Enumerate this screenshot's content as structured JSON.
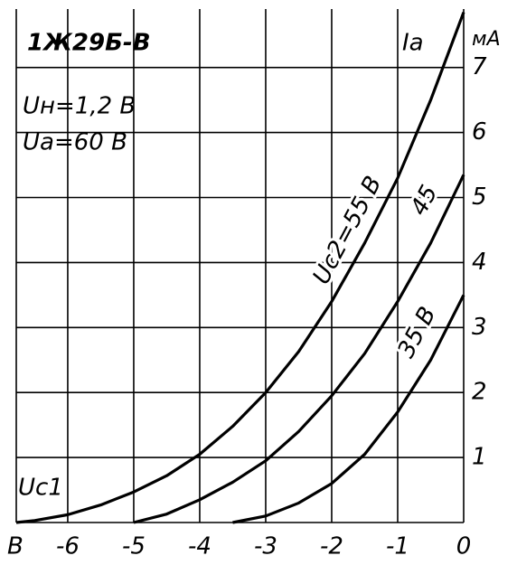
{
  "chart_data": {
    "type": "line",
    "title": "1Ж29Б-В",
    "annotations": [
      "Uн=1,2 В",
      "Uа=60 В"
    ],
    "y_label": "Iа",
    "y_unit": "мА",
    "x_label": "Uc1",
    "x_unit": "В",
    "x": [
      -6.78,
      -6.5,
      -6,
      -5.5,
      -5,
      -4.5,
      -4,
      -3.5,
      -3,
      -2.5,
      -2,
      -1.5,
      -1,
      -0.5,
      0
    ],
    "series": [
      {
        "name": "Uc2=55 В",
        "color": "#000000",
        "values": [
          0,
          0.03,
          0.12,
          0.27,
          0.47,
          0.72,
          1.05,
          1.48,
          2.0,
          2.63,
          3.4,
          4.3,
          5.3,
          6.5,
          7.85
        ]
      },
      {
        "name": "45",
        "color": "#000000",
        "values": [
          null,
          null,
          null,
          null,
          0,
          0.13,
          0.35,
          0.62,
          0.95,
          1.4,
          1.95,
          2.6,
          3.4,
          4.3,
          5.35
        ]
      },
      {
        "name": "35 В",
        "color": "#000000",
        "values": [
          null,
          null,
          null,
          null,
          null,
          null,
          null,
          0,
          0.1,
          0.3,
          0.6,
          1.05,
          1.7,
          2.5,
          3.5
        ]
      }
    ],
    "xlim": [
      -6.78,
      0
    ],
    "ylim": [
      0,
      7.9
    ],
    "xticks": [
      -6,
      -5,
      -4,
      -3,
      -2,
      -1,
      0
    ],
    "yticks": [
      1,
      2,
      3,
      4,
      5,
      6,
      7
    ],
    "grid": true
  }
}
